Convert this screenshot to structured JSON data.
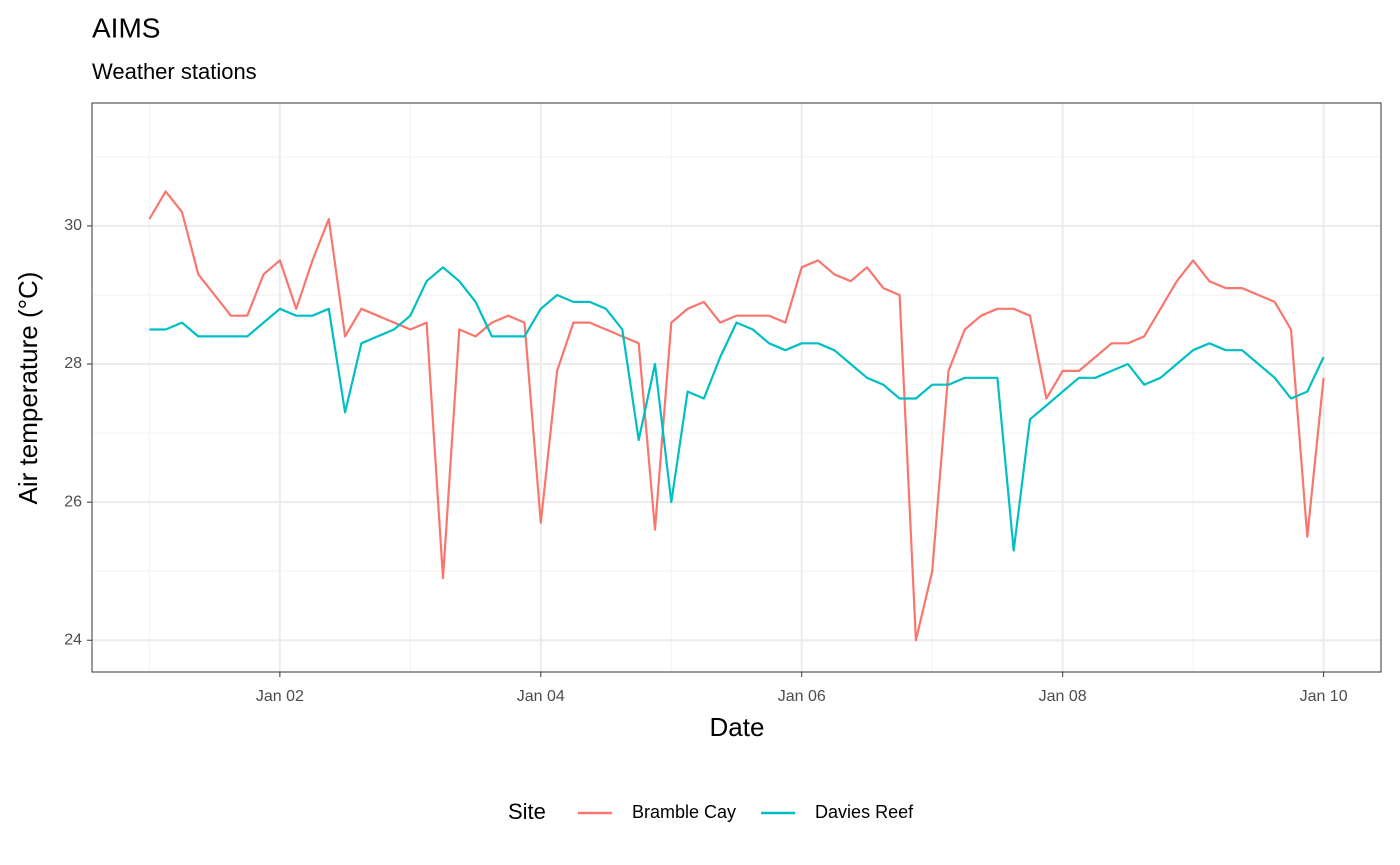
{
  "chart_data": {
    "type": "line",
    "title": "AIMS",
    "subtitle": "Weather stations",
    "x_label": "Date",
    "y_label": "Air temperature (°C)",
    "legend_title": "Site",
    "legend": "bottom",
    "grid": true,
    "x": [
      1,
      1.125,
      1.25,
      1.375,
      1.5,
      1.625,
      1.75,
      1.875,
      2,
      2.125,
      2.25,
      2.375,
      2.5,
      2.625,
      2.75,
      2.875,
      3,
      3.125,
      3.25,
      3.375,
      3.5,
      3.625,
      3.75,
      3.875,
      4,
      4.125,
      4.25,
      4.375,
      4.5,
      4.625,
      4.75,
      4.875,
      5,
      5.125,
      5.25,
      5.375,
      5.5,
      5.625,
      5.75,
      5.875,
      6,
      6.125,
      6.25,
      6.375,
      6.5,
      6.625,
      6.75,
      6.875,
      7,
      7.125,
      7.25,
      7.375,
      7.5,
      7.625,
      7.75,
      7.875,
      8,
      8.125,
      8.25,
      8.375,
      8.5,
      8.625,
      8.75,
      8.875,
      9,
      9.125,
      9.25,
      9.375,
      9.5,
      9.625,
      9.75,
      9.875,
      10
    ],
    "series": [
      {
        "name": "Bramble Cay",
        "color": "#F8766D",
        "values": [
          30.1,
          30.5,
          30.2,
          29.3,
          29.0,
          28.7,
          28.7,
          29.3,
          29.5,
          28.8,
          29.5,
          30.1,
          28.4,
          28.8,
          28.7,
          28.6,
          28.5,
          28.6,
          24.9,
          28.5,
          28.4,
          28.6,
          28.7,
          28.6,
          25.7,
          27.9,
          28.6,
          28.6,
          28.5,
          28.4,
          28.3,
          25.6,
          28.6,
          28.8,
          28.9,
          28.6,
          28.7,
          28.7,
          28.7,
          28.6,
          29.4,
          29.5,
          29.3,
          29.2,
          29.4,
          29.1,
          29.0,
          24.0,
          25.0,
          27.9,
          28.5,
          28.7,
          28.8,
          28.8,
          28.7,
          27.5,
          27.9,
          27.9,
          28.1,
          28.3,
          28.3,
          28.4,
          28.8,
          29.2,
          29.5,
          29.2,
          29.1,
          29.1,
          29.0,
          28.9,
          28.5,
          25.5,
          27.8
        ]
      },
      {
        "name": "Davies Reef",
        "color": "#00BFC4",
        "values": [
          28.5,
          28.5,
          28.6,
          28.4,
          28.4,
          28.4,
          28.4,
          28.6,
          28.8,
          28.7,
          28.7,
          28.8,
          27.3,
          28.3,
          28.4,
          28.5,
          28.7,
          29.2,
          29.4,
          29.2,
          28.9,
          28.4,
          28.4,
          28.4,
          28.8,
          29.0,
          28.9,
          28.9,
          28.8,
          28.5,
          26.9,
          28.0,
          26.0,
          27.6,
          27.5,
          28.1,
          28.6,
          28.5,
          28.3,
          28.2,
          28.3,
          28.3,
          28.2,
          28.0,
          27.8,
          27.7,
          27.5,
          27.5,
          27.7,
          27.7,
          27.8,
          27.8,
          27.8,
          25.3,
          27.2,
          27.4,
          27.6,
          27.8,
          27.8,
          27.9,
          28.0,
          27.7,
          27.8,
          28.0,
          28.2,
          28.3,
          28.2,
          28.2,
          28.0,
          27.8,
          27.5,
          27.6,
          28.1
        ]
      }
    ],
    "xlim": [
      0.56,
      10.44
    ],
    "xticks": [
      {
        "value": 2,
        "label": "Jan 02"
      },
      {
        "value": 4,
        "label": "Jan 04"
      },
      {
        "value": 6,
        "label": "Jan 06"
      },
      {
        "value": 8,
        "label": "Jan 08"
      },
      {
        "value": 10,
        "label": "Jan 10"
      }
    ],
    "ylim": [
      23.54,
      31.78
    ],
    "yticks": [
      24,
      26,
      28,
      30
    ]
  }
}
